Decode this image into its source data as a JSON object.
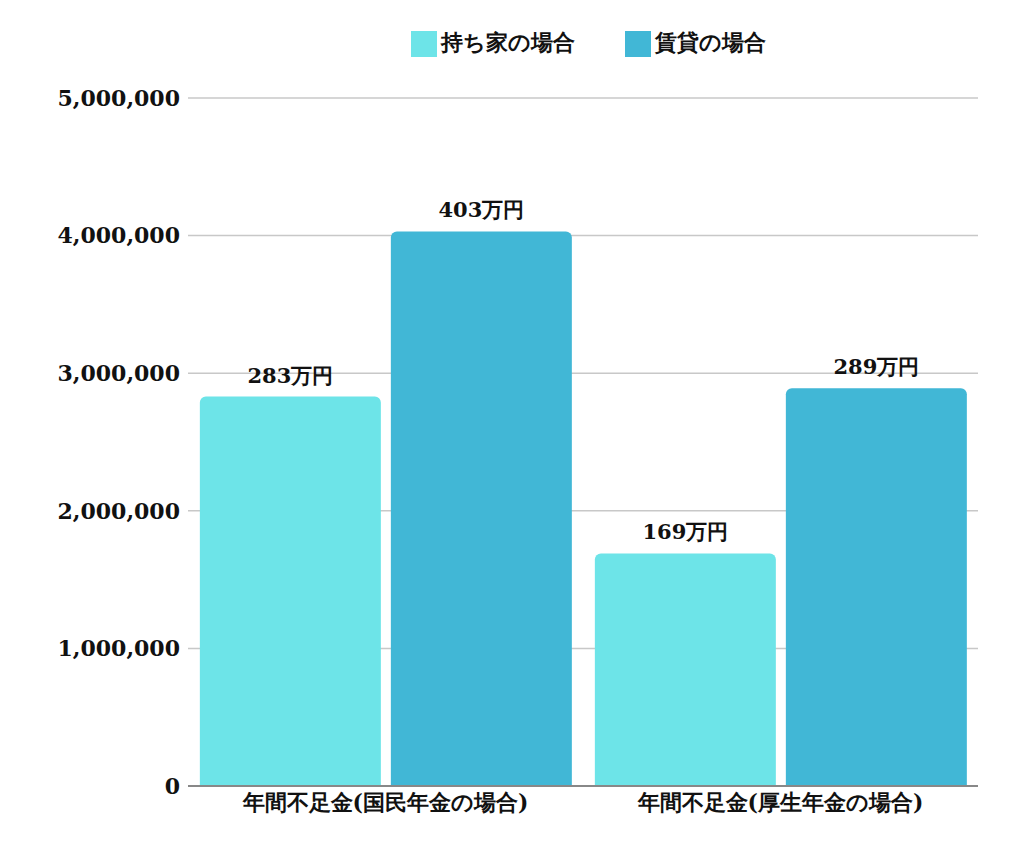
{
  "chart_data": {
    "type": "bar",
    "categories": [
      "年間不足金(国民年金の場合)",
      "年間不足金(厚生年金の場合)"
    ],
    "series": [
      {
        "name": "持ち家の場合",
        "color": "#6de4e8",
        "values": [
          2830000,
          1690000
        ],
        "value_labels": [
          "283万円",
          "169万円"
        ]
      },
      {
        "name": "賃貸の場合",
        "color": "#41b7d6",
        "values": [
          4030000,
          2890000
        ],
        "value_labels": [
          "403万円",
          "289万円"
        ]
      }
    ],
    "ylim": [
      0,
      5000000
    ],
    "yticks": [
      0,
      {
        "value": 1000000,
        "label": "1,000,000"
      },
      {
        "value": 2000000,
        "label": "2,000,000"
      },
      {
        "value": 3000000,
        "label": "3,000,000"
      },
      {
        "value": 4000000,
        "label": "4,000,000"
      },
      {
        "value": 5000000,
        "label": "5,000,000"
      }
    ],
    "grid": true,
    "legend": "top",
    "data_labels": true
  }
}
